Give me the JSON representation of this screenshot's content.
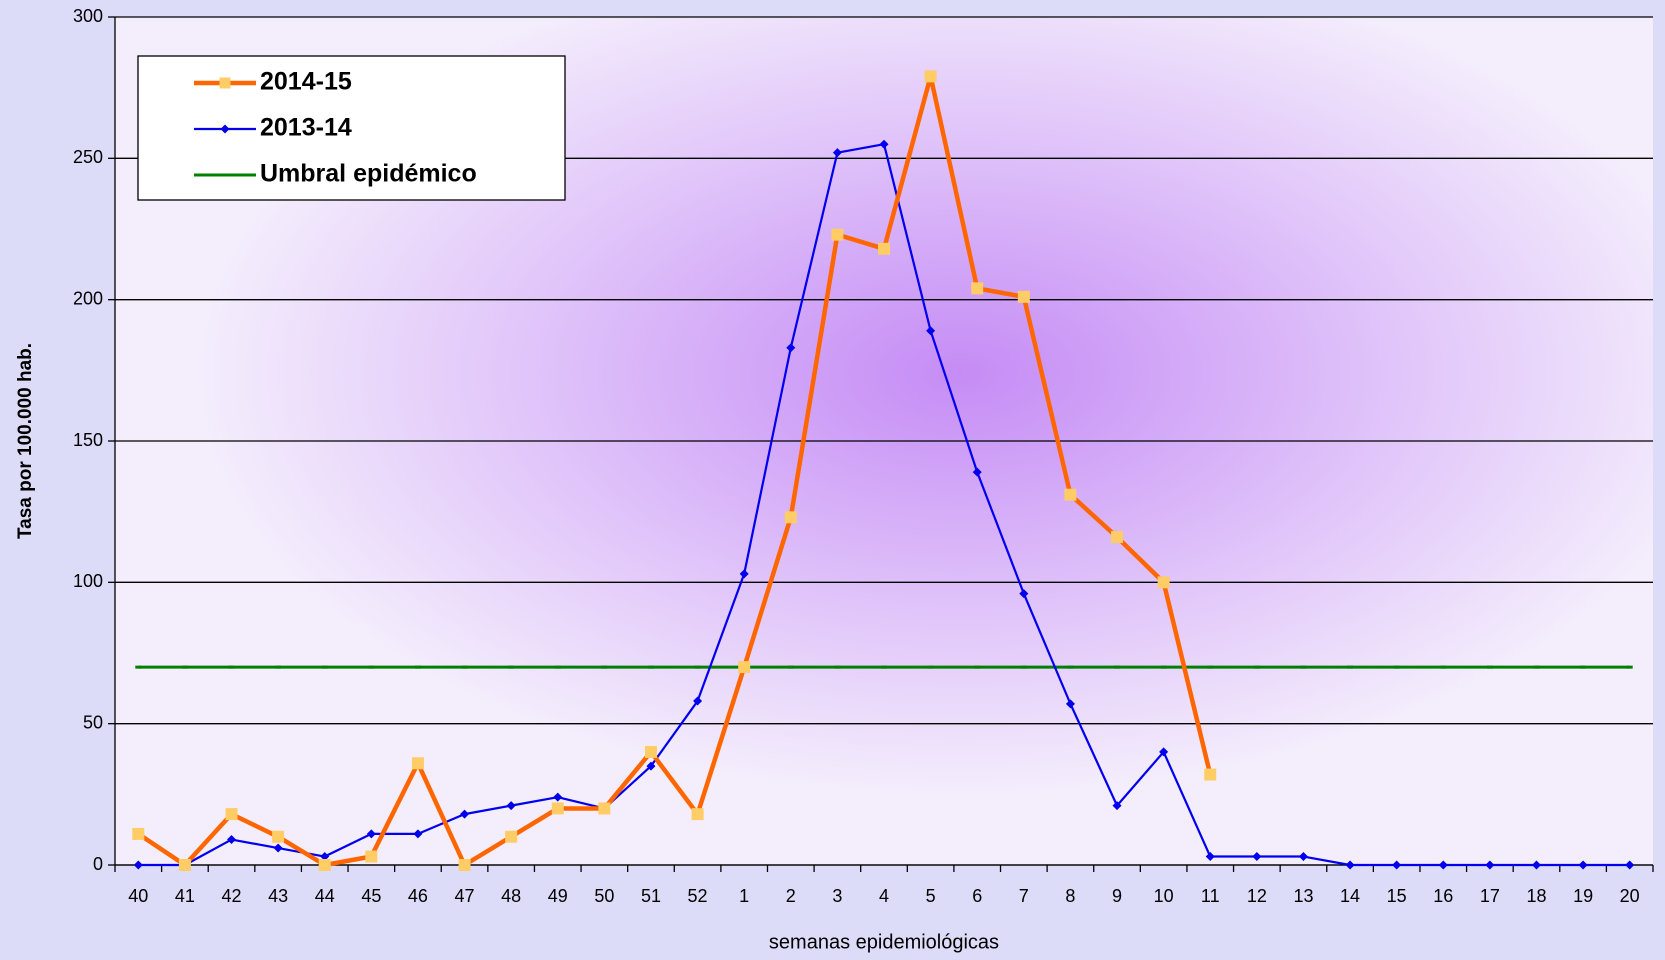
{
  "chart_data": {
    "type": "line",
    "y_label": "Tasa por 100.000 hab.",
    "x_label": "semanas epidemiológicas",
    "categories": [
      "40",
      "41",
      "42",
      "43",
      "44",
      "45",
      "46",
      "47",
      "48",
      "49",
      "50",
      "51",
      "52",
      "1",
      "2",
      "3",
      "4",
      "5",
      "6",
      "7",
      "8",
      "9",
      "10",
      "11",
      "12",
      "13",
      "14",
      "15",
      "16",
      "17",
      "18",
      "19",
      "20"
    ],
    "series": [
      {
        "name": "2014-15",
        "color": "#ff6600",
        "marker_color": "#ffcc66",
        "values": [
          11,
          0,
          18,
          10,
          0,
          3,
          36,
          0,
          10,
          20,
          20,
          40,
          18,
          70,
          123,
          223,
          218,
          279,
          204,
          201,
          131,
          116,
          100,
          32,
          null,
          null,
          null,
          null,
          null,
          null,
          null,
          null,
          null
        ]
      },
      {
        "name": "2013-14",
        "color": "#0000ee",
        "values": [
          0,
          0,
          9,
          6,
          3,
          11,
          11,
          18,
          21,
          24,
          20,
          35,
          58,
          103,
          183,
          252,
          255,
          189,
          139,
          96,
          57,
          21,
          40,
          3,
          3,
          3,
          0,
          0,
          0,
          0,
          0,
          0,
          0
        ]
      },
      {
        "name": "Umbral epidémico",
        "color": "#008000",
        "values": [
          70,
          70,
          70,
          70,
          70,
          70,
          70,
          70,
          70,
          70,
          70,
          70,
          70,
          70,
          70,
          70,
          70,
          70,
          70,
          70,
          70,
          70,
          70,
          70,
          70,
          70,
          70,
          70,
          70,
          70,
          70,
          70,
          70
        ]
      }
    ],
    "ylim": [
      0,
      300
    ],
    "yticks": [
      0,
      50,
      100,
      150,
      200,
      250,
      300
    ],
    "grid": true,
    "legend": "upper left"
  }
}
